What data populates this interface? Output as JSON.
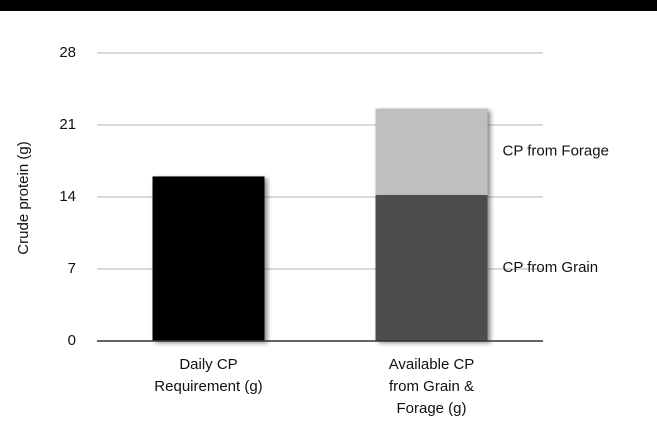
{
  "chart_data": {
    "type": "stacked-bar",
    "y_label": "Crude protein (g)",
    "categories": [
      "Daily CP Requirement (g)",
      "Available CP from Grain & Forage (g)"
    ],
    "series": [
      {
        "color": "#000000",
        "values": [
          16,
          null
        ]
      },
      {
        "name": "CP from Grain",
        "color": "#4d4d4d",
        "values": [
          null,
          14.2
        ]
      },
      {
        "name": "CP from Forage",
        "color": "#bfbfbf",
        "values": [
          null,
          8.4
        ]
      }
    ],
    "ylim": [
      0,
      28
    ],
    "yticks": [
      0,
      7,
      14,
      21,
      28
    ],
    "grid": true
  }
}
